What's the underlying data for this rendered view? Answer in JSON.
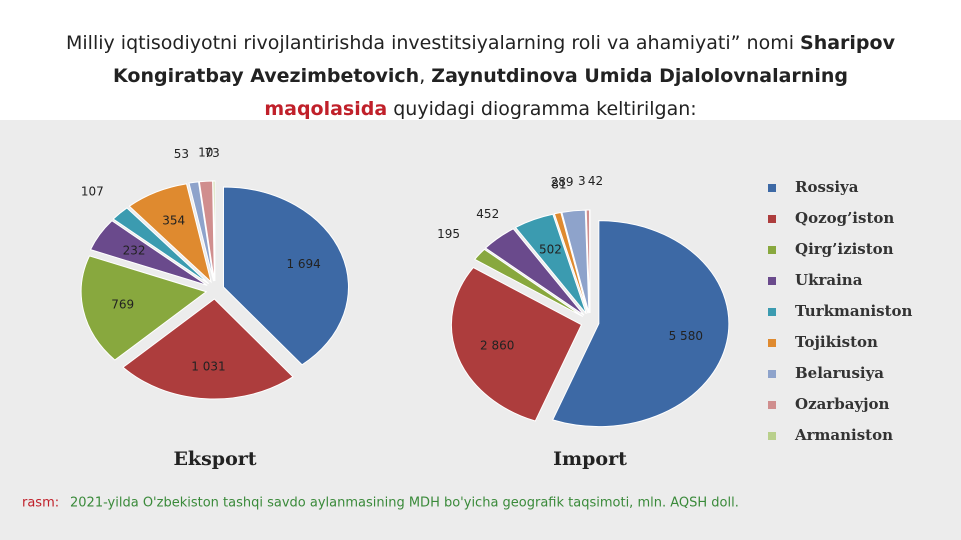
{
  "heading": [
    {
      "text": "Milliy iqtisodiyotni rivojlantirishda investitsiyalarning roli va ahamiyati” nomi ",
      "bold": false
    },
    {
      "text": "Sharipov Kongiratbay Avezimbetovich",
      "bold": true
    },
    {
      "text": ", ",
      "bold": false
    },
    {
      "text": "Zaynutdinova Umida Djalolovnalarning",
      "bold": true
    },
    {
      "text": " ",
      "bold": false
    },
    {
      "text": "maqolasida",
      "bold": true,
      "color": "#c0202a"
    },
    {
      "text": " quyidagi diogramma keltirilgan:",
      "bold": false
    }
  ],
  "caption": {
    "label": "rasm:",
    "text": "2021-yilda O'zbekiston tashqi savdo aylanmasining MDH bo'yicha geografik taqsimoti, mln. AQSH doll."
  },
  "chart_data": {
    "type": "pie",
    "categories": [
      "Rossiya",
      "Qozog’iston",
      "Qirg’iziston",
      "Ukraina",
      "Turkmaniston",
      "Tojikiston",
      "Belarusiya",
      "Ozarbayjon",
      "Armaniston"
    ],
    "colors": [
      "#3d69a5",
      "#ad3d3d",
      "#88a83e",
      "#6a4a8c",
      "#3b9bb0",
      "#df8a2f",
      "#8ea3cb",
      "#d08e8e",
      "#b9d08c"
    ],
    "series": [
      {
        "name": "Eksport",
        "values": [
          1694,
          1031,
          769,
          232,
          107,
          354,
          53,
          73,
          10
        ],
        "value_labels": [
          "1 694",
          "1 031",
          "769",
          "232",
          "107",
          "354",
          "53",
          "73",
          "10"
        ]
      },
      {
        "name": "Import",
        "values": [
          5580,
          2860,
          195,
          452,
          502,
          81,
          289,
          42,
          3
        ],
        "value_labels": [
          "5 580",
          "2 860",
          "195",
          "452",
          "502",
          "81",
          "289",
          "42",
          "3"
        ]
      }
    ]
  }
}
